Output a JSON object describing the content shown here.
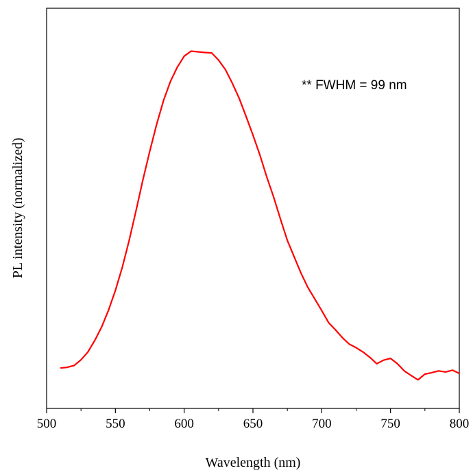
{
  "chart_data": {
    "type": "line",
    "xlabel": "Wavelength (nm)",
    "ylabel": "PL intensity (normalized)",
    "xlim": [
      500,
      800
    ],
    "ylim": [
      0,
      1.12
    ],
    "x_ticks": [
      500,
      550,
      600,
      650,
      700,
      750,
      800
    ],
    "x_tick_labels": [
      "500",
      "550",
      "600",
      "650",
      "700",
      "750",
      "800"
    ],
    "y_tick_labels_shown": false,
    "grid": false,
    "legend": "none",
    "annotation": "** FWHM = 99 nm",
    "series": [
      {
        "color": "#ff0000",
        "x": [
          510,
          515,
          520,
          525,
          530,
          535,
          540,
          545,
          550,
          555,
          560,
          565,
          570,
          575,
          580,
          585,
          590,
          595,
          600,
          605,
          610,
          615,
          620,
          625,
          630,
          635,
          640,
          645,
          650,
          655,
          660,
          665,
          670,
          675,
          680,
          685,
          690,
          695,
          700,
          705,
          710,
          715,
          720,
          725,
          730,
          735,
          740,
          745,
          750,
          755,
          760,
          765,
          770,
          775,
          780,
          785,
          790,
          795,
          800
        ],
        "y": [
          0.113,
          0.115,
          0.12,
          0.136,
          0.158,
          0.19,
          0.228,
          0.275,
          0.33,
          0.395,
          0.47,
          0.553,
          0.64,
          0.72,
          0.795,
          0.862,
          0.915,
          0.955,
          0.986,
          1.0,
          0.998,
          0.996,
          0.995,
          0.975,
          0.948,
          0.91,
          0.868,
          0.817,
          0.765,
          0.71,
          0.648,
          0.592,
          0.53,
          0.47,
          0.424,
          0.378,
          0.338,
          0.306,
          0.274,
          0.24,
          0.22,
          0.198,
          0.18,
          0.17,
          0.158,
          0.143,
          0.125,
          0.135,
          0.14,
          0.125,
          0.105,
          0.092,
          0.08,
          0.096,
          0.1,
          0.105,
          0.102,
          0.107,
          0.098
        ]
      }
    ]
  }
}
